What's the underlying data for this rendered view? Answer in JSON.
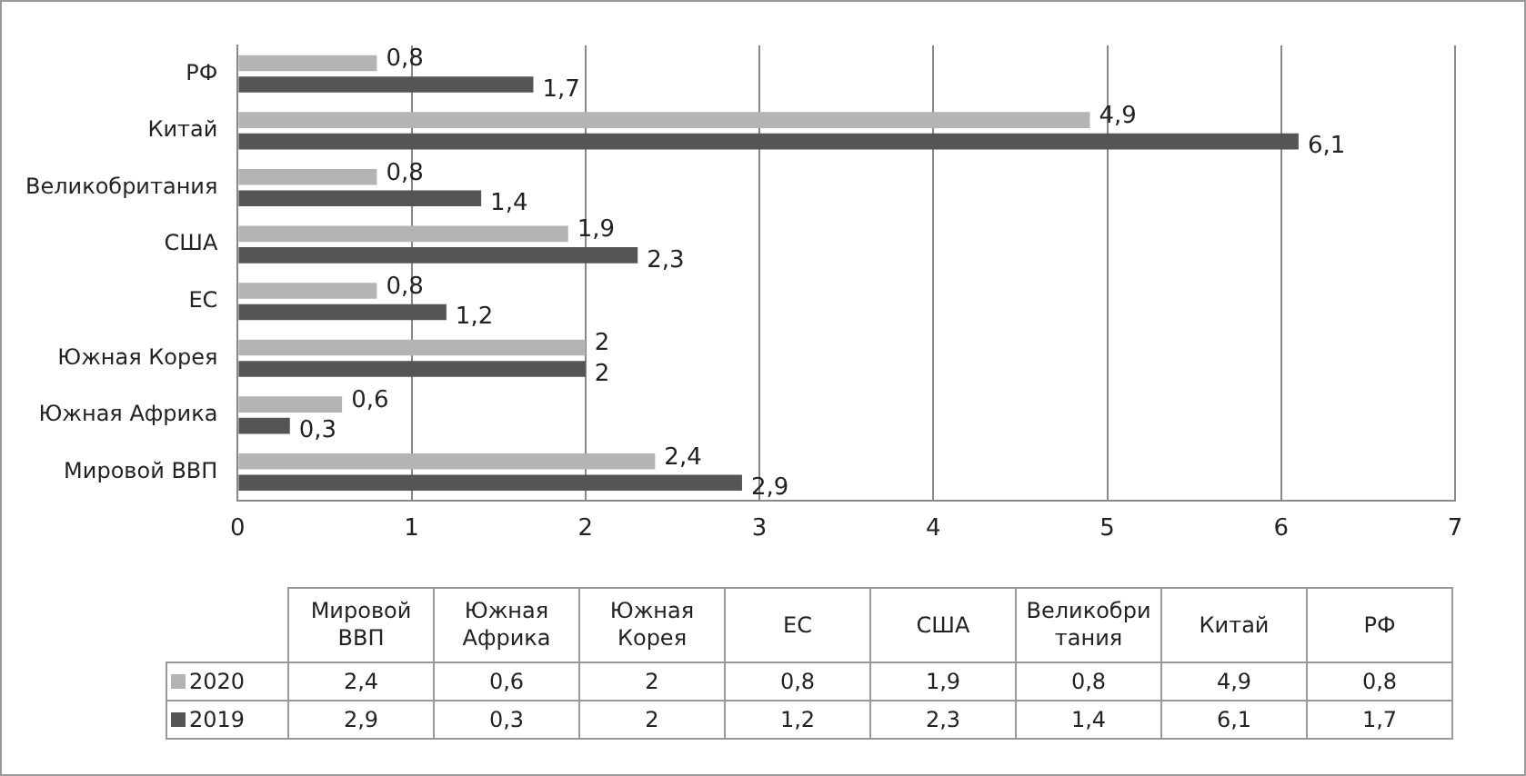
{
  "chart_data": {
    "type": "bar",
    "orientation": "horizontal",
    "categories": [
      "РФ",
      "Китай",
      "Великобритания",
      "США",
      "ЕС",
      "Южная Корея",
      "Южная Африка",
      "Мировой ВВП"
    ],
    "series": [
      {
        "name": "2020",
        "color": "#b4b4b4",
        "values": [
          0.8,
          4.9,
          0.8,
          1.9,
          0.8,
          2,
          0.6,
          2.4
        ],
        "value_labels": [
          "0,8",
          "4,9",
          "0,8",
          "1,9",
          "0,8",
          "2",
          "0,6",
          "2,4"
        ]
      },
      {
        "name": "2019",
        "color": "#555555",
        "values": [
          1.7,
          6.1,
          1.4,
          2.3,
          1.2,
          2,
          0.3,
          2.9
        ],
        "value_labels": [
          "1,7",
          "6,1",
          "1,4",
          "2,3",
          "1,2",
          "2",
          "0,3",
          "2,9"
        ]
      }
    ],
    "xlim": [
      0,
      7
    ],
    "xticks": [
      0,
      1,
      2,
      3,
      4,
      5,
      6,
      7
    ],
    "grid": "x",
    "legend": "bottom"
  }
}
